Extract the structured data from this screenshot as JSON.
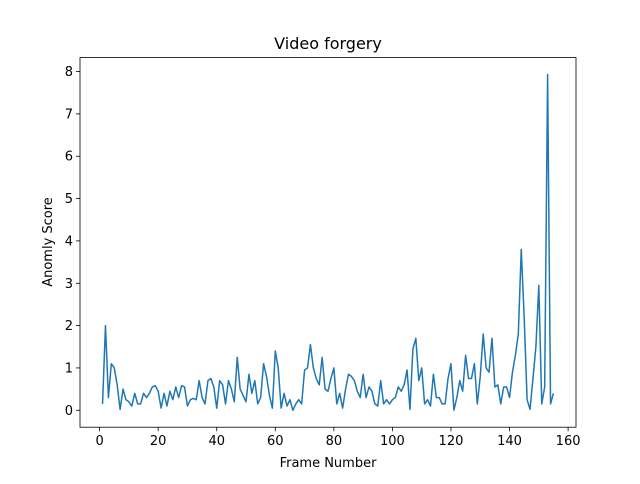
{
  "chart_data": {
    "type": "line",
    "title": "Video forgery",
    "xlabel": "Frame Number",
    "ylabel": "Anomly Score",
    "x": [
      1,
      2,
      3,
      4,
      5,
      6,
      7,
      8,
      9,
      10,
      11,
      12,
      13,
      14,
      15,
      16,
      17,
      18,
      19,
      20,
      21,
      22,
      23,
      24,
      25,
      26,
      27,
      28,
      29,
      30,
      31,
      32,
      33,
      34,
      35,
      36,
      37,
      38,
      39,
      40,
      41,
      42,
      43,
      44,
      45,
      46,
      47,
      48,
      49,
      50,
      51,
      52,
      53,
      54,
      55,
      56,
      57,
      58,
      59,
      60,
      61,
      62,
      63,
      64,
      65,
      66,
      67,
      68,
      69,
      70,
      71,
      72,
      73,
      74,
      75,
      76,
      77,
      78,
      79,
      80,
      81,
      82,
      83,
      84,
      85,
      86,
      87,
      88,
      89,
      90,
      91,
      92,
      93,
      94,
      95,
      96,
      97,
      98,
      99,
      100,
      101,
      102,
      103,
      104,
      105,
      106,
      107,
      108,
      109,
      110,
      111,
      112,
      113,
      114,
      115,
      116,
      117,
      118,
      119,
      120,
      121,
      122,
      123,
      124,
      125,
      126,
      127,
      128,
      129,
      130,
      131,
      132,
      133,
      134,
      135,
      136,
      137,
      138,
      139,
      140,
      141,
      142,
      143,
      144,
      145,
      146,
      147,
      148,
      149,
      150,
      151,
      152,
      153,
      154,
      155
    ],
    "series": [
      {
        "name": "Anomly Score",
        "color": "#1f77b4",
        "values": [
          0.15,
          2.0,
          0.3,
          1.1,
          1.0,
          0.6,
          0.02,
          0.5,
          0.25,
          0.2,
          0.1,
          0.4,
          0.15,
          0.15,
          0.4,
          0.3,
          0.4,
          0.55,
          0.58,
          0.45,
          0.05,
          0.4,
          0.1,
          0.45,
          0.25,
          0.55,
          0.3,
          0.58,
          0.55,
          0.1,
          0.25,
          0.28,
          0.25,
          0.7,
          0.3,
          0.15,
          0.7,
          0.75,
          0.55,
          0.05,
          0.7,
          0.6,
          0.15,
          0.7,
          0.5,
          0.2,
          1.25,
          0.5,
          0.35,
          0.2,
          0.85,
          0.4,
          0.7,
          0.15,
          0.3,
          1.1,
          0.8,
          0.35,
          0.05,
          1.4,
          1.0,
          0.05,
          0.4,
          0.1,
          0.25,
          0.0,
          0.15,
          0.25,
          0.15,
          0.95,
          1.0,
          1.55,
          1.0,
          0.75,
          0.6,
          1.25,
          0.5,
          0.45,
          0.75,
          1.0,
          0.15,
          0.4,
          0.05,
          0.5,
          0.85,
          0.8,
          0.7,
          0.45,
          0.3,
          0.85,
          0.3,
          0.55,
          0.45,
          0.15,
          0.1,
          0.7,
          0.15,
          0.25,
          0.15,
          0.25,
          0.3,
          0.55,
          0.45,
          0.6,
          0.95,
          0.02,
          1.45,
          1.7,
          0.7,
          1.0,
          0.15,
          0.25,
          0.1,
          0.85,
          0.3,
          0.3,
          0.15,
          0.15,
          0.75,
          1.1,
          0.0,
          0.3,
          0.7,
          0.45,
          1.3,
          0.75,
          0.75,
          1.1,
          0.15,
          0.8,
          1.8,
          1.0,
          0.9,
          1.7,
          0.55,
          0.6,
          0.15,
          0.55,
          0.55,
          0.3,
          0.9,
          1.3,
          1.8,
          3.8,
          2.2,
          0.25,
          0.02,
          0.75,
          1.5,
          2.95,
          0.15,
          0.55,
          7.93,
          0.15,
          0.4
        ]
      }
    ],
    "xlim": [
      -6.7,
      162.7
    ],
    "ylim": [
      -0.4,
      8.33
    ],
    "xticks": [
      0,
      20,
      40,
      60,
      80,
      100,
      120,
      140,
      160
    ],
    "yticks": [
      0,
      1,
      2,
      3,
      4,
      5,
      6,
      7,
      8
    ]
  }
}
